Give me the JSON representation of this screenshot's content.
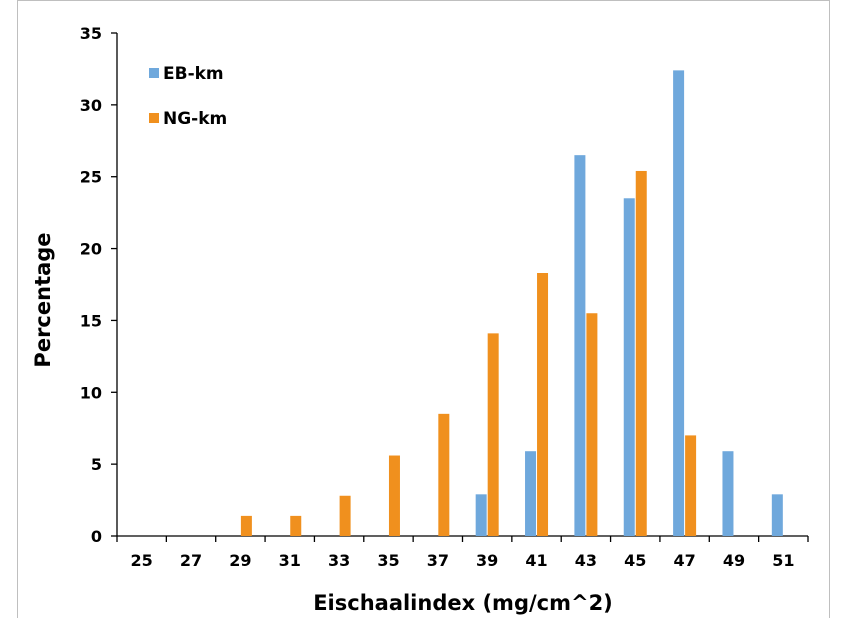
{
  "chart_data": {
    "type": "bar",
    "title": "",
    "xlabel": "Eischaalindex (mg/cm^2)",
    "ylabel": "Percentage",
    "ylim": [
      0,
      35
    ],
    "yticks": [
      0,
      5,
      10,
      15,
      20,
      25,
      30,
      35
    ],
    "categories": [
      "25",
      "27",
      "29",
      "31",
      "33",
      "35",
      "37",
      "39",
      "41",
      "43",
      "45",
      "47",
      "49",
      "51"
    ],
    "series": [
      {
        "name": "EB-km",
        "color": "#6fa8dc",
        "values": [
          0,
          0,
          0,
          0,
          0,
          0,
          0,
          2.9,
          5.9,
          26.5,
          23.5,
          32.4,
          5.9,
          2.9
        ]
      },
      {
        "name": "NG-km",
        "color": "#f0901e",
        "values": [
          0,
          0,
          1.4,
          1.4,
          2.8,
          5.6,
          8.5,
          14.1,
          18.3,
          15.5,
          25.4,
          7.0,
          0,
          0
        ]
      }
    ],
    "legend_position": "top-left",
    "grid": false
  }
}
